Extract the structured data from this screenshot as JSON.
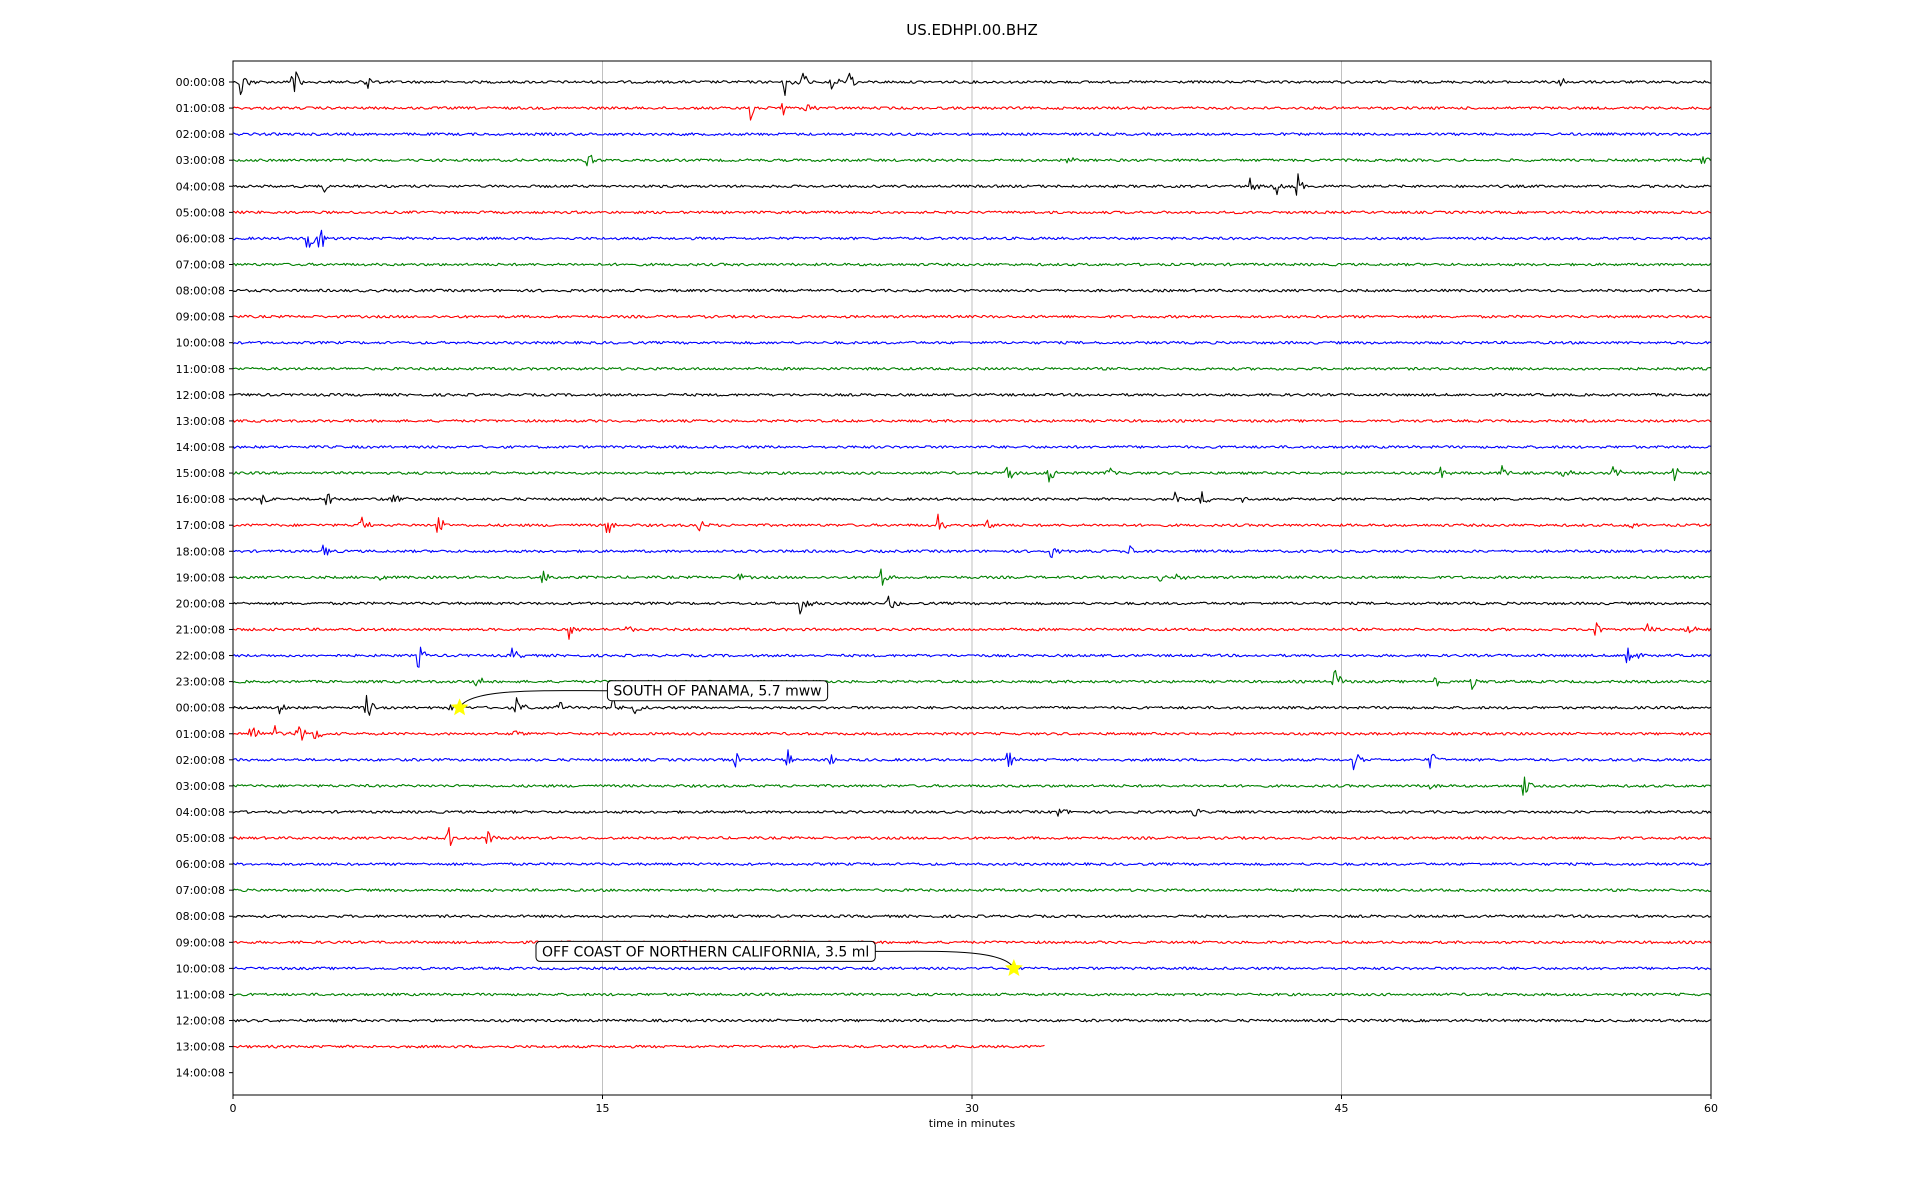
{
  "chart_data": {
    "type": "line",
    "title": "US.EDHPI.00.BHZ",
    "xlabel": "time in minutes",
    "ylabel": "",
    "xlim": [
      0,
      60
    ],
    "x_ticks": [
      0,
      15,
      30,
      45,
      60
    ],
    "grid": "vertical lines at x ticks",
    "y_tick_labels": [
      "00:00:08",
      "01:00:08",
      "02:00:08",
      "03:00:08",
      "04:00:08",
      "05:00:08",
      "06:00:08",
      "07:00:08",
      "08:00:08",
      "09:00:08",
      "10:00:08",
      "11:00:08",
      "12:00:08",
      "13:00:08",
      "14:00:08",
      "15:00:08",
      "16:00:08",
      "17:00:08",
      "18:00:08",
      "19:00:08",
      "20:00:08",
      "21:00:08",
      "22:00:08",
      "23:00:08",
      "00:00:08",
      "01:00:08",
      "02:00:08",
      "03:00:08",
      "04:00:08",
      "05:00:08",
      "06:00:08",
      "07:00:08",
      "08:00:08",
      "09:00:08",
      "10:00:08",
      "11:00:08",
      "12:00:08",
      "13:00:08",
      "14:00:08"
    ],
    "trace_colors": [
      "#000000",
      "#ff0000",
      "#0000ff",
      "#008000"
    ],
    "traces": [
      {
        "row": 0,
        "end": 60,
        "events": [
          [
            0.3,
            1.0
          ],
          [
            2.4,
            1.0
          ],
          [
            2.6,
            0.5
          ],
          [
            5.4,
            0.6
          ],
          [
            22.4,
            1.0
          ],
          [
            23.1,
            0.8
          ],
          [
            24.2,
            0.8
          ],
          [
            25.0,
            0.6
          ],
          [
            53.8,
            0.6
          ]
        ]
      },
      {
        "row": 1,
        "end": 60,
        "events": [
          [
            21.0,
            0.8
          ],
          [
            22.3,
            0.6
          ],
          [
            23.2,
            0.4
          ]
        ]
      },
      {
        "row": 2,
        "end": 60,
        "events": []
      },
      {
        "row": 3,
        "end": 60,
        "events": [
          [
            14.3,
            0.9
          ],
          [
            33.8,
            0.4
          ],
          [
            59.6,
            0.5
          ]
        ]
      },
      {
        "row": 4,
        "end": 60,
        "events": [
          [
            3.7,
            0.4
          ],
          [
            41.3,
            0.6
          ],
          [
            42.3,
            0.7
          ],
          [
            43.2,
            0.9
          ]
        ]
      },
      {
        "row": 5,
        "end": 60,
        "events": []
      },
      {
        "row": 6,
        "end": 60,
        "events": [
          [
            3.0,
            1.0
          ],
          [
            3.5,
            0.9
          ]
        ]
      },
      {
        "row": 7,
        "end": 60,
        "events": []
      },
      {
        "row": 8,
        "end": 60,
        "events": []
      },
      {
        "row": 9,
        "end": 60,
        "events": []
      },
      {
        "row": 10,
        "end": 60,
        "events": []
      },
      {
        "row": 11,
        "end": 60,
        "events": []
      },
      {
        "row": 12,
        "end": 60,
        "events": []
      },
      {
        "row": 13,
        "end": 60,
        "events": []
      },
      {
        "row": 14,
        "end": 60,
        "events": []
      },
      {
        "row": 15,
        "end": 60,
        "events": [
          [
            31.4,
            1.0
          ],
          [
            33.1,
            0.7
          ],
          [
            35.5,
            0.5
          ],
          [
            49.0,
            0.4
          ],
          [
            51.5,
            0.5
          ],
          [
            54.0,
            0.5
          ],
          [
            56.0,
            0.5
          ],
          [
            58.5,
            0.5
          ]
        ]
      },
      {
        "row": 16,
        "end": 60,
        "events": [
          [
            1.2,
            0.5
          ],
          [
            3.8,
            0.6
          ],
          [
            6.5,
            0.5
          ],
          [
            38.2,
            0.6
          ],
          [
            39.3,
            0.5
          ],
          [
            41.0,
            0.3
          ]
        ]
      },
      {
        "row": 17,
        "end": 60,
        "events": [
          [
            5.1,
            0.8
          ],
          [
            8.3,
            0.8
          ],
          [
            15.2,
            0.8
          ],
          [
            18.9,
            0.5
          ],
          [
            28.6,
            0.7
          ],
          [
            30.6,
            0.5
          ],
          [
            56.7,
            0.4
          ]
        ]
      },
      {
        "row": 18,
        "end": 60,
        "events": [
          [
            3.6,
            0.5
          ],
          [
            33.2,
            0.4
          ],
          [
            36.3,
            0.5
          ]
        ]
      },
      {
        "row": 19,
        "end": 60,
        "events": [
          [
            5.9,
            0.5
          ],
          [
            12.5,
            0.7
          ],
          [
            20.4,
            0.5
          ],
          [
            26.3,
            0.7
          ],
          [
            37.5,
            0.4
          ],
          [
            38.3,
            0.4
          ]
        ]
      },
      {
        "row": 20,
        "end": 60,
        "events": [
          [
            23.0,
            0.9
          ],
          [
            26.6,
            0.6
          ]
        ]
      },
      {
        "row": 21,
        "end": 60,
        "events": [
          [
            13.6,
            0.7
          ],
          [
            15.8,
            0.5
          ],
          [
            55.3,
            0.5
          ],
          [
            57.4,
            0.5
          ],
          [
            59.0,
            0.5
          ]
        ]
      },
      {
        "row": 22,
        "end": 60,
        "events": [
          [
            7.5,
            0.8
          ],
          [
            11.3,
            0.5
          ],
          [
            56.6,
            0.9
          ]
        ]
      },
      {
        "row": 23,
        "end": 60,
        "events": [
          [
            9.8,
            0.6
          ],
          [
            44.7,
            0.9
          ],
          [
            48.8,
            0.7
          ],
          [
            50.3,
            0.4
          ]
        ]
      },
      {
        "row": 24,
        "end": 60,
        "events": [
          [
            1.9,
            0.5
          ],
          [
            5.4,
            0.9
          ],
          [
            8.7,
            0.5
          ],
          [
            11.5,
            0.9
          ],
          [
            13.2,
            0.5
          ],
          [
            15.4,
            0.7
          ],
          [
            16.3,
            0.4
          ]
        ]
      },
      {
        "row": 25,
        "end": 60,
        "events": [
          [
            0.7,
            0.6
          ],
          [
            1.7,
            0.7
          ],
          [
            2.6,
            0.8
          ],
          [
            3.3,
            0.8
          ],
          [
            11.4,
            0.3
          ]
        ]
      },
      {
        "row": 26,
        "end": 60,
        "events": [
          [
            20.4,
            0.6
          ],
          [
            22.5,
            0.6
          ],
          [
            24.2,
            0.5
          ],
          [
            31.4,
            0.8
          ],
          [
            45.5,
            0.7
          ],
          [
            48.6,
            0.6
          ]
        ]
      },
      {
        "row": 27,
        "end": 60,
        "events": [
          [
            48.6,
            0.3
          ],
          [
            52.4,
            0.8
          ]
        ]
      },
      {
        "row": 28,
        "end": 60,
        "events": [
          [
            33.5,
            0.5
          ],
          [
            39.0,
            0.3
          ]
        ]
      },
      {
        "row": 29,
        "end": 60,
        "events": [
          [
            8.7,
            0.9
          ],
          [
            10.3,
            0.5
          ]
        ]
      },
      {
        "row": 30,
        "end": 60,
        "events": []
      },
      {
        "row": 31,
        "end": 60,
        "events": []
      },
      {
        "row": 32,
        "end": 60,
        "events": []
      },
      {
        "row": 33,
        "end": 60,
        "events": []
      },
      {
        "row": 34,
        "end": 60,
        "events": []
      },
      {
        "row": 35,
        "end": 60,
        "events": []
      },
      {
        "row": 36,
        "end": 60,
        "events": []
      },
      {
        "row": 37,
        "end": 33,
        "events": []
      }
    ],
    "annotations": [
      {
        "text": "SOUTH OF PANAMA, 5.7 mww",
        "row": 24,
        "x": 9.2,
        "text_x": 15.2,
        "text_row": 23.35,
        "edge_color": "#000000",
        "face_color": "#ffffff"
      },
      {
        "text": "OFF COAST OF NORTHERN CALIFORNIA, 3.5 ml",
        "row": 34,
        "x": 31.7,
        "text_x": 12.3,
        "text_row": 33.35,
        "edge_color": "#000000",
        "face_color": "#ffffff"
      }
    ],
    "marker_color": "#ffff00"
  }
}
